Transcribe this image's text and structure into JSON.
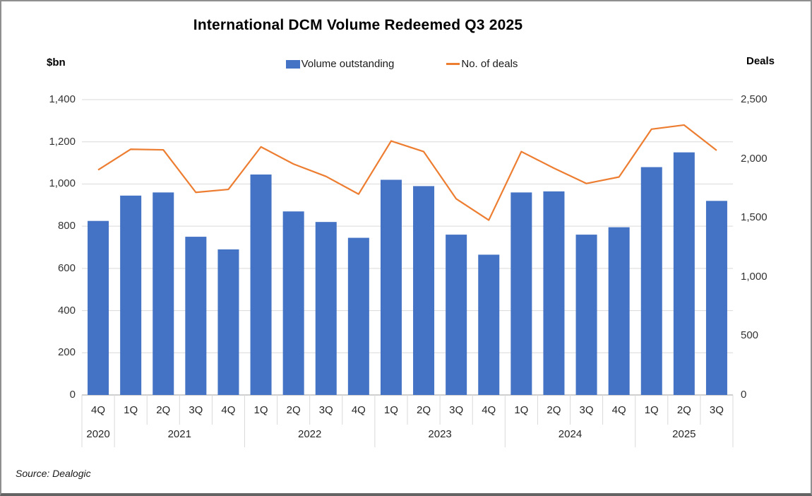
{
  "title": "International DCM Volume Redeemed Q3 2025",
  "left_axis_title": "$bn",
  "right_axis_title": "Deals",
  "legend": {
    "volume_label": "Volume outstanding",
    "deals_label": "No. of deals"
  },
  "source": "Source: Dealogic",
  "colors": {
    "bar": "#4472C4",
    "line": "#ED7D31",
    "gridline": "#D9D9D9",
    "axis_line": "#BFBFBF",
    "separator": "#D9D9D9"
  },
  "chart_data": {
    "type": "bar",
    "secondary_type": "line",
    "title": "International DCM Volume Redeemed Q3 2025",
    "legend_position": "top",
    "grid": true,
    "categories": [
      "4Q",
      "1Q",
      "2Q",
      "3Q",
      "4Q",
      "1Q",
      "2Q",
      "3Q",
      "4Q",
      "1Q",
      "2Q",
      "3Q",
      "4Q",
      "1Q",
      "2Q",
      "3Q",
      "4Q",
      "1Q",
      "2Q",
      "3Q"
    ],
    "year_groups": [
      {
        "label": "2020",
        "count": 1
      },
      {
        "label": "2021",
        "count": 4
      },
      {
        "label": "2022",
        "count": 4
      },
      {
        "label": "2023",
        "count": 4
      },
      {
        "label": "2024",
        "count": 4
      },
      {
        "label": "2025",
        "count": 3
      }
    ],
    "series": [
      {
        "name": "Volume outstanding",
        "type": "bar",
        "axis": "left",
        "values": [
          825,
          945,
          960,
          750,
          690,
          1045,
          870,
          820,
          745,
          1020,
          990,
          760,
          665,
          960,
          965,
          760,
          795,
          1080,
          1150,
          920
        ]
      },
      {
        "name": "No. of deals",
        "type": "line",
        "axis": "right",
        "values": [
          1905,
          2080,
          2075,
          1715,
          1740,
          2100,
          1955,
          1850,
          1700,
          2150,
          2060,
          1660,
          1480,
          2060,
          1920,
          1790,
          1845,
          2250,
          2285,
          2070
        ]
      }
    ],
    "left_axis": {
      "title": "$bn",
      "min": 0,
      "max": 1400,
      "step": 200
    },
    "right_axis": {
      "title": "Deals",
      "min": 0,
      "max": 2500,
      "step": 500
    }
  }
}
